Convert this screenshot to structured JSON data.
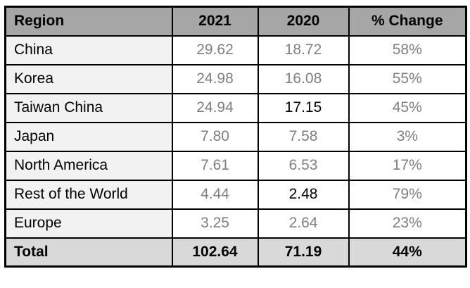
{
  "colors": {
    "header_bg": "#a6a6a6",
    "total_bg": "#d9d9d9",
    "region_col_bg": "#f2f2f2",
    "cell_bg": "#ffffff",
    "muted_text": "#7f7f7f",
    "strong_text": "#000000",
    "border": "#000000"
  },
  "table": {
    "columns": [
      "Region",
      "2021",
      "2020",
      "% Change"
    ],
    "rows": [
      {
        "region": "China",
        "values": [
          "29.62",
          "18.72",
          "58%"
        ],
        "value_colors": [
          "muted",
          "muted",
          "muted"
        ]
      },
      {
        "region": "Korea",
        "values": [
          "24.98",
          "16.08",
          "55%"
        ],
        "value_colors": [
          "muted",
          "muted",
          "muted"
        ]
      },
      {
        "region": "Taiwan China",
        "values": [
          "24.94",
          "17.15",
          "45%"
        ],
        "value_colors": [
          "muted",
          "strong",
          "muted"
        ]
      },
      {
        "region": "Japan",
        "values": [
          "7.80",
          "7.58",
          "3%"
        ],
        "value_colors": [
          "muted",
          "muted",
          "muted"
        ]
      },
      {
        "region": "North America",
        "values": [
          "7.61",
          "6.53",
          "17%"
        ],
        "value_colors": [
          "muted",
          "muted",
          "muted"
        ]
      },
      {
        "region": "Rest of the World",
        "values": [
          "4.44",
          "2.48",
          "79%"
        ],
        "value_colors": [
          "muted",
          "strong",
          "muted"
        ]
      },
      {
        "region": "Europe",
        "values": [
          "3.25",
          "2.64",
          "23%"
        ],
        "value_colors": [
          "muted",
          "muted",
          "muted"
        ]
      }
    ],
    "total": {
      "region": "Total",
      "values": [
        "102.64",
        "71.19",
        "44%"
      ]
    }
  },
  "chart_data": {
    "type": "table",
    "columns": [
      "Region",
      "2021",
      "2020",
      "% Change"
    ],
    "rows": [
      [
        "China",
        29.62,
        18.72,
        "58%"
      ],
      [
        "Korea",
        24.98,
        16.08,
        "55%"
      ],
      [
        "Taiwan China",
        24.94,
        17.15,
        "45%"
      ],
      [
        "Japan",
        7.8,
        7.58,
        "3%"
      ],
      [
        "North America",
        7.61,
        6.53,
        "17%"
      ],
      [
        "Rest of the World",
        4.44,
        2.48,
        "79%"
      ],
      [
        "Europe",
        3.25,
        2.64,
        "23%"
      ]
    ],
    "total_row": [
      "Total",
      102.64,
      71.19,
      "44%"
    ]
  }
}
